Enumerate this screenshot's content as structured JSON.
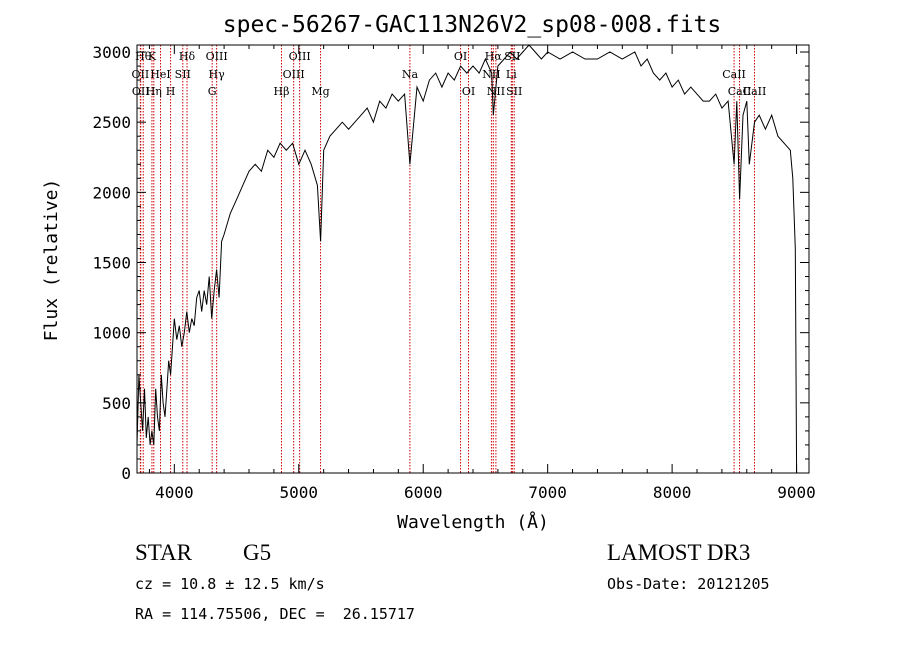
{
  "chart_data": {
    "type": "line",
    "title": "spec-56267-GAC113N26V2_sp08-008.fits",
    "xlabel": "Wavelength (Å)",
    "ylabel": "Flux (relative)",
    "xlim": [
      3700,
      9100
    ],
    "ylim": [
      0,
      3050
    ],
    "xticks": [
      {
        "value": 4000,
        "label": "4000"
      },
      {
        "value": 5000,
        "label": "5000"
      },
      {
        "value": 6000,
        "label": "6000"
      },
      {
        "value": 7000,
        "label": "7000"
      },
      {
        "value": 8000,
        "label": "8000"
      },
      {
        "value": 9000,
        "label": "9000"
      }
    ],
    "yticks": [
      {
        "value": 0,
        "label": "0"
      },
      {
        "value": 500,
        "label": "500"
      },
      {
        "value": 1000,
        "label": "1000"
      },
      {
        "value": 1500,
        "label": "1500"
      },
      {
        "value": 2000,
        "label": "2000"
      },
      {
        "value": 2500,
        "label": "2500"
      },
      {
        "value": 3000,
        "label": "3000"
      }
    ],
    "line_color": "#000000",
    "marker_color": "#cc0000",
    "series": [
      {
        "name": "spectrum",
        "x": [
          3700,
          3715,
          3730,
          3745,
          3760,
          3775,
          3790,
          3805,
          3820,
          3835,
          3850,
          3865,
          3880,
          3895,
          3910,
          3925,
          3940,
          3955,
          3970,
          3985,
          4000,
          4020,
          4040,
          4060,
          4080,
          4100,
          4120,
          4140,
          4160,
          4180,
          4200,
          4220,
          4240,
          4260,
          4280,
          4300,
          4320,
          4340,
          4360,
          4380,
          4400,
          4450,
          4500,
          4550,
          4600,
          4650,
          4700,
          4750,
          4800,
          4850,
          4900,
          4950,
          5000,
          5050,
          5100,
          5150,
          5175,
          5200,
          5250,
          5300,
          5350,
          5400,
          5450,
          5500,
          5550,
          5600,
          5650,
          5700,
          5750,
          5800,
          5850,
          5893,
          5950,
          6000,
          6050,
          6100,
          6150,
          6200,
          6250,
          6300,
          6350,
          6400,
          6450,
          6500,
          6550,
          6563,
          6600,
          6650,
          6700,
          6750,
          6800,
          6850,
          6900,
          6950,
          7000,
          7100,
          7200,
          7300,
          7400,
          7500,
          7600,
          7700,
          7750,
          7800,
          7850,
          7900,
          7950,
          8000,
          8050,
          8100,
          8150,
          8200,
          8250,
          8300,
          8350,
          8400,
          8450,
          8498,
          8520,
          8542,
          8570,
          8600,
          8620,
          8662,
          8700,
          8750,
          8800,
          8850,
          8900,
          8950,
          8970,
          8990,
          9000
        ],
        "y": [
          200,
          700,
          500,
          300,
          600,
          250,
          400,
          200,
          300,
          200,
          600,
          400,
          300,
          700,
          500,
          400,
          600,
          800,
          700,
          900,
          1100,
          950,
          1050,
          900,
          1000,
          1150,
          1000,
          1100,
          1050,
          1250,
          1300,
          1150,
          1300,
          1200,
          1400,
          1100,
          1300,
          1450,
          1250,
          1650,
          1700,
          1850,
          1950,
          2050,
          2150,
          2200,
          2150,
          2300,
          2250,
          2350,
          2300,
          2350,
          2200,
          2300,
          2200,
          2050,
          1650,
          2300,
          2400,
          2450,
          2500,
          2450,
          2500,
          2550,
          2600,
          2500,
          2650,
          2600,
          2700,
          2650,
          2700,
          2200,
          2750,
          2650,
          2800,
          2850,
          2750,
          2850,
          2800,
          2900,
          2850,
          2900,
          2850,
          2950,
          2850,
          2550,
          2900,
          2950,
          3000,
          2950,
          3000,
          3050,
          3000,
          2950,
          3000,
          2950,
          3000,
          2950,
          2950,
          3000,
          2950,
          3000,
          2900,
          2950,
          2850,
          2800,
          2850,
          2750,
          2800,
          2700,
          2750,
          2700,
          2650,
          2650,
          2700,
          2600,
          2650,
          2200,
          2650,
          1950,
          2550,
          2650,
          2200,
          2500,
          2550,
          2450,
          2550,
          2400,
          2350,
          2300,
          2100,
          1600,
          0
        ]
      }
    ],
    "line_markers": [
      {
        "wave": 3750,
        "label": "Hθ",
        "row": 0
      },
      {
        "wave": 3820,
        "label": "K",
        "row": 0
      },
      {
        "wave": 4102,
        "label": "Hδ",
        "row": 0
      },
      {
        "wave": 4340,
        "label": "OIII",
        "row": 0
      },
      {
        "wave": 5007,
        "label": "OIII",
        "row": 0
      },
      {
        "wave": 6300,
        "label": "OI",
        "row": 0
      },
      {
        "wave": 6563,
        "label": "Hα",
        "row": 0
      },
      {
        "wave": 6716,
        "label": "SII",
        "row": 0
      },
      {
        "wave": 3727,
        "label": "OII",
        "row": 1
      },
      {
        "wave": 3889,
        "label": "HeI",
        "row": 1
      },
      {
        "wave": 4068,
        "label": "SII",
        "row": 1
      },
      {
        "wave": 4340,
        "label": "Hγ",
        "row": 1
      },
      {
        "wave": 4959,
        "label": "OIII",
        "row": 1
      },
      {
        "wave": 5893,
        "label": "Na",
        "row": 1
      },
      {
        "wave": 6548,
        "label": "NII",
        "row": 1
      },
      {
        "wave": 6708,
        "label": "Li",
        "row": 1
      },
      {
        "wave": 8498,
        "label": "CaII",
        "row": 1
      },
      {
        "wave": 8542,
        "label": "CaII",
        "row": 2
      },
      {
        "wave": 3730,
        "label": "OII",
        "row": 3
      },
      {
        "wave": 3835,
        "label": "Hη",
        "row": 3
      },
      {
        "wave": 3970,
        "label": "H",
        "row": 3
      },
      {
        "wave": 4304,
        "label": "G",
        "row": 3
      },
      {
        "wave": 4861,
        "label": "Hβ",
        "row": 3
      },
      {
        "wave": 5175,
        "label": "Mg",
        "row": 3
      },
      {
        "wave": 6364,
        "label": "OI",
        "row": 3
      },
      {
        "wave": 6584,
        "label": "NII",
        "row": 3
      },
      {
        "wave": 6731,
        "label": "SII",
        "row": 3
      },
      {
        "wave": 8662,
        "label": "CaII",
        "row": 3
      }
    ]
  },
  "info": {
    "object_class": "STAR",
    "subclass": "G5",
    "survey": "LAMOST DR3",
    "redshift": "cz = 10.8 ± 12.5 km/s",
    "obs_date": "Obs-Date: 20121205",
    "coords": "RA = 114.75506, DEC =  26.15717"
  }
}
